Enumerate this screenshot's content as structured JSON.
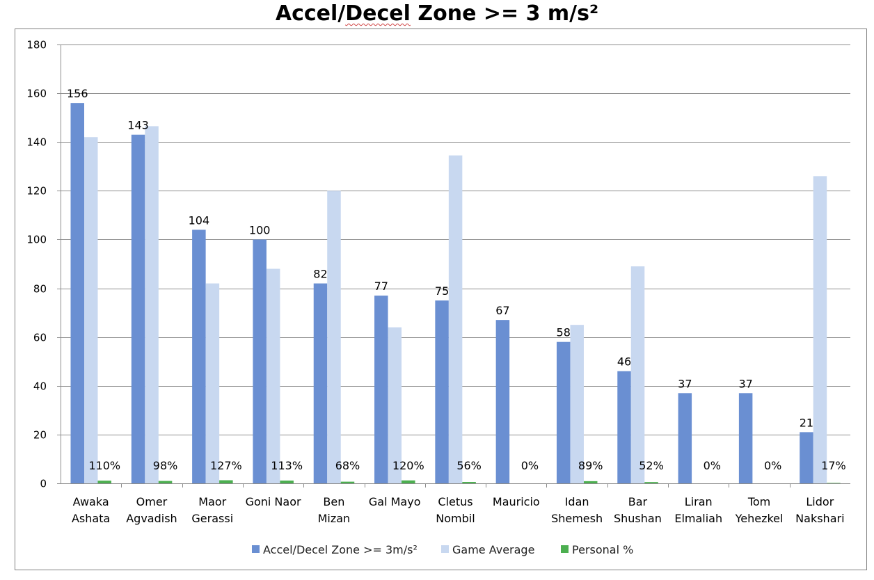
{
  "chart_data": {
    "type": "bar",
    "title_parts": [
      "Accel/",
      "Decel",
      " Zone >= 3 m/s²"
    ],
    "xlabel": "",
    "ylabel": "",
    "ylim": [
      0,
      180
    ],
    "yticks": [
      0,
      20,
      40,
      60,
      80,
      100,
      120,
      140,
      160,
      180
    ],
    "grid": true,
    "legend_position": "bottom",
    "categories": [
      [
        "Awaka",
        "Ashata"
      ],
      [
        "Omer",
        "Agvadish"
      ],
      [
        "Maor",
        "Gerassi"
      ],
      [
        "Goni Naor"
      ],
      [
        "Ben",
        "Mizan"
      ],
      [
        "Gal Mayo"
      ],
      [
        "Cletus",
        "Nombil"
      ],
      [
        "Mauricio"
      ],
      [
        "Idan",
        "Shemesh"
      ],
      [
        "Bar",
        "Shushan"
      ],
      [
        "Liran",
        "Elmaliah"
      ],
      [
        "Tom",
        "Yehezkel"
      ],
      [
        "Lidor",
        "Nakshari"
      ]
    ],
    "series": [
      {
        "name": "Accel/Decel Zone >= 3m/s²",
        "color": "#6a8fd2",
        "values": [
          156,
          143,
          104,
          100,
          82,
          77,
          75,
          67,
          58,
          46,
          37,
          37,
          21
        ],
        "labels": [
          "156",
          "143",
          "104",
          "100",
          "82",
          "77",
          "75",
          "67",
          "58",
          "46",
          "37",
          "37",
          "21"
        ]
      },
      {
        "name": "Game Average",
        "color": "#c8d8f0",
        "values": [
          142,
          146.5,
          82,
          88,
          120,
          64,
          134.5,
          0,
          65,
          89,
          0,
          0,
          126
        ]
      },
      {
        "name": "Personal %",
        "color": "#4caf50",
        "values": [
          1.1,
          0.98,
          1.27,
          1.13,
          0.68,
          1.2,
          0.56,
          0,
          0.89,
          0.52,
          0,
          0,
          0.17
        ],
        "labels": [
          "110%",
          "98%",
          "127%",
          "113%",
          "68%",
          "120%",
          "56%",
          "0%",
          "89%",
          "52%",
          "0%",
          "0%",
          "17%"
        ]
      }
    ]
  }
}
